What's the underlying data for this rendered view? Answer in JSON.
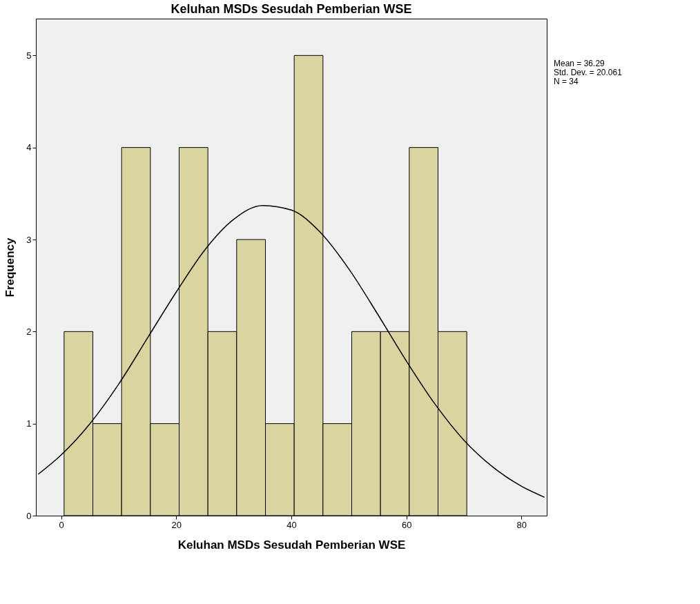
{
  "chart_data": {
    "type": "histogram",
    "title": "Keluhan MSDs Sesudah Pemberian WSE",
    "xlabel": "Keluhan MSDs Sesudah Pemberian WSE",
    "ylabel": "Frequency",
    "bins": [
      0.5,
      5.5,
      10.5,
      15.5,
      20.5,
      25.5,
      30.5,
      35.5,
      40.5,
      45.5,
      50.5,
      55.5,
      60.5,
      65.5,
      70.5
    ],
    "values": [
      2,
      1,
      4,
      1,
      4,
      2,
      3,
      1,
      5,
      1,
      2,
      2,
      4,
      2
    ],
    "color": "#d9d4a0",
    "series": [
      {
        "type": "line",
        "color": "#000000",
        "x": [
          -4,
          0,
          5,
          10,
          15,
          20,
          25,
          30,
          35,
          40,
          45,
          50,
          55,
          60,
          65,
          70,
          75,
          80,
          84
        ],
        "values": [
          0.45,
          0.66,
          1.0,
          1.43,
          1.93,
          2.43,
          2.89,
          3.22,
          3.37,
          3.32,
          3.08,
          2.68,
          2.19,
          1.68,
          1.21,
          0.82,
          0.53,
          0.32,
          0.2
        ]
      }
    ],
    "xlim": [
      -4.4,
      84.4
    ],
    "xticks": [
      0,
      20,
      40,
      60,
      80
    ],
    "ylim": [
      0,
      5.4
    ],
    "yticks": [
      0,
      1,
      2,
      3,
      4,
      5
    ],
    "grid": false,
    "annotations": [
      "Mean = 36.29",
      "Std. Dev. = 20.061",
      "N = 34"
    ]
  }
}
